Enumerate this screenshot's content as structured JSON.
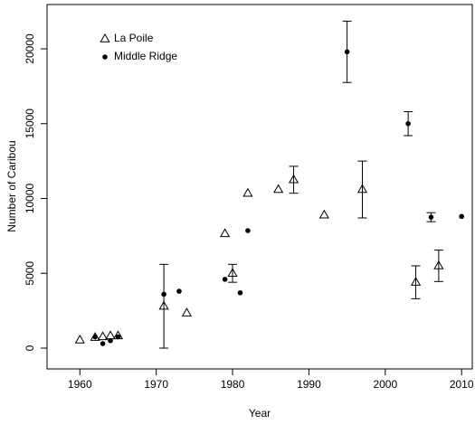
{
  "chart_data": {
    "type": "scatter",
    "x_label": "Year",
    "y_label": "Number of Caribou",
    "xlim": [
      1955.7,
      2011.4
    ],
    "ylim": [
      -1390,
      22960
    ],
    "xticks": [
      1960,
      1970,
      1980,
      1990,
      2000,
      2010
    ],
    "yticks": [
      0,
      5000,
      10000,
      15000,
      20000
    ],
    "legend": "topleft",
    "series": [
      {
        "name": "La Poile",
        "marker": "triangle",
        "color": "#000000",
        "x": [
          1960,
          1962,
          1963,
          1964,
          1965,
          1971,
          1974,
          1979,
          1980,
          1982,
          1986,
          1988,
          1992,
          1997,
          2004,
          2007
        ],
        "values": [
          540,
          720,
          760,
          820,
          820,
          2800,
          2350,
          7650,
          5000,
          10350,
          10600,
          11250,
          8900,
          10600,
          4400,
          5500
        ],
        "errors": [
          null,
          null,
          null,
          null,
          null,
          2800,
          null,
          null,
          600,
          null,
          null,
          900,
          null,
          1900,
          1100,
          1050
        ]
      },
      {
        "name": "Middle Ridge",
        "marker": "circle",
        "color": "#000000",
        "x": [
          1962,
          1963,
          1964,
          1965,
          1971,
          1973,
          1979,
          1981,
          1982,
          1995,
          2003,
          2006,
          2010
        ],
        "values": [
          750,
          300,
          500,
          750,
          3600,
          3800,
          4600,
          3700,
          7850,
          19800,
          15000,
          8750,
          8800
        ],
        "errors": [
          null,
          null,
          null,
          null,
          null,
          null,
          null,
          null,
          null,
          2050,
          800,
          300,
          null
        ]
      }
    ]
  }
}
